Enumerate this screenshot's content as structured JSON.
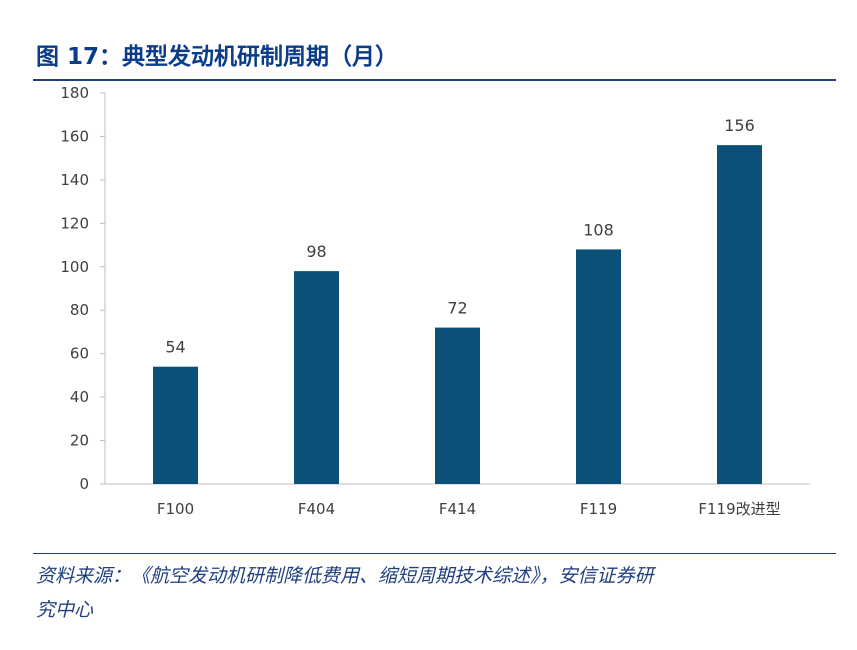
{
  "figure": {
    "title": "图 17：典型发动机研制周期（月）",
    "source_line1": "资料来源：《航空发动机研制降低费用、缩短周期技术综述》，安信证券研",
    "source_line2": "究中心"
  },
  "colors": {
    "bar": "#0a5078",
    "axis": "#bfbfbf",
    "text": "#404040",
    "title": "#0a3c8a",
    "rule": "#1f3f7f"
  },
  "chart_data": {
    "type": "bar",
    "title": "",
    "xlabel": "",
    "ylabel": "",
    "categories": [
      "F100",
      "F404",
      "F414",
      "F119",
      "F119改进型"
    ],
    "values": [
      54,
      98,
      72,
      108,
      156
    ],
    "ylim": [
      0,
      180
    ],
    "yticks": [
      0,
      20,
      40,
      60,
      80,
      100,
      120,
      140,
      160,
      180
    ],
    "grid": false,
    "legend": "none"
  }
}
